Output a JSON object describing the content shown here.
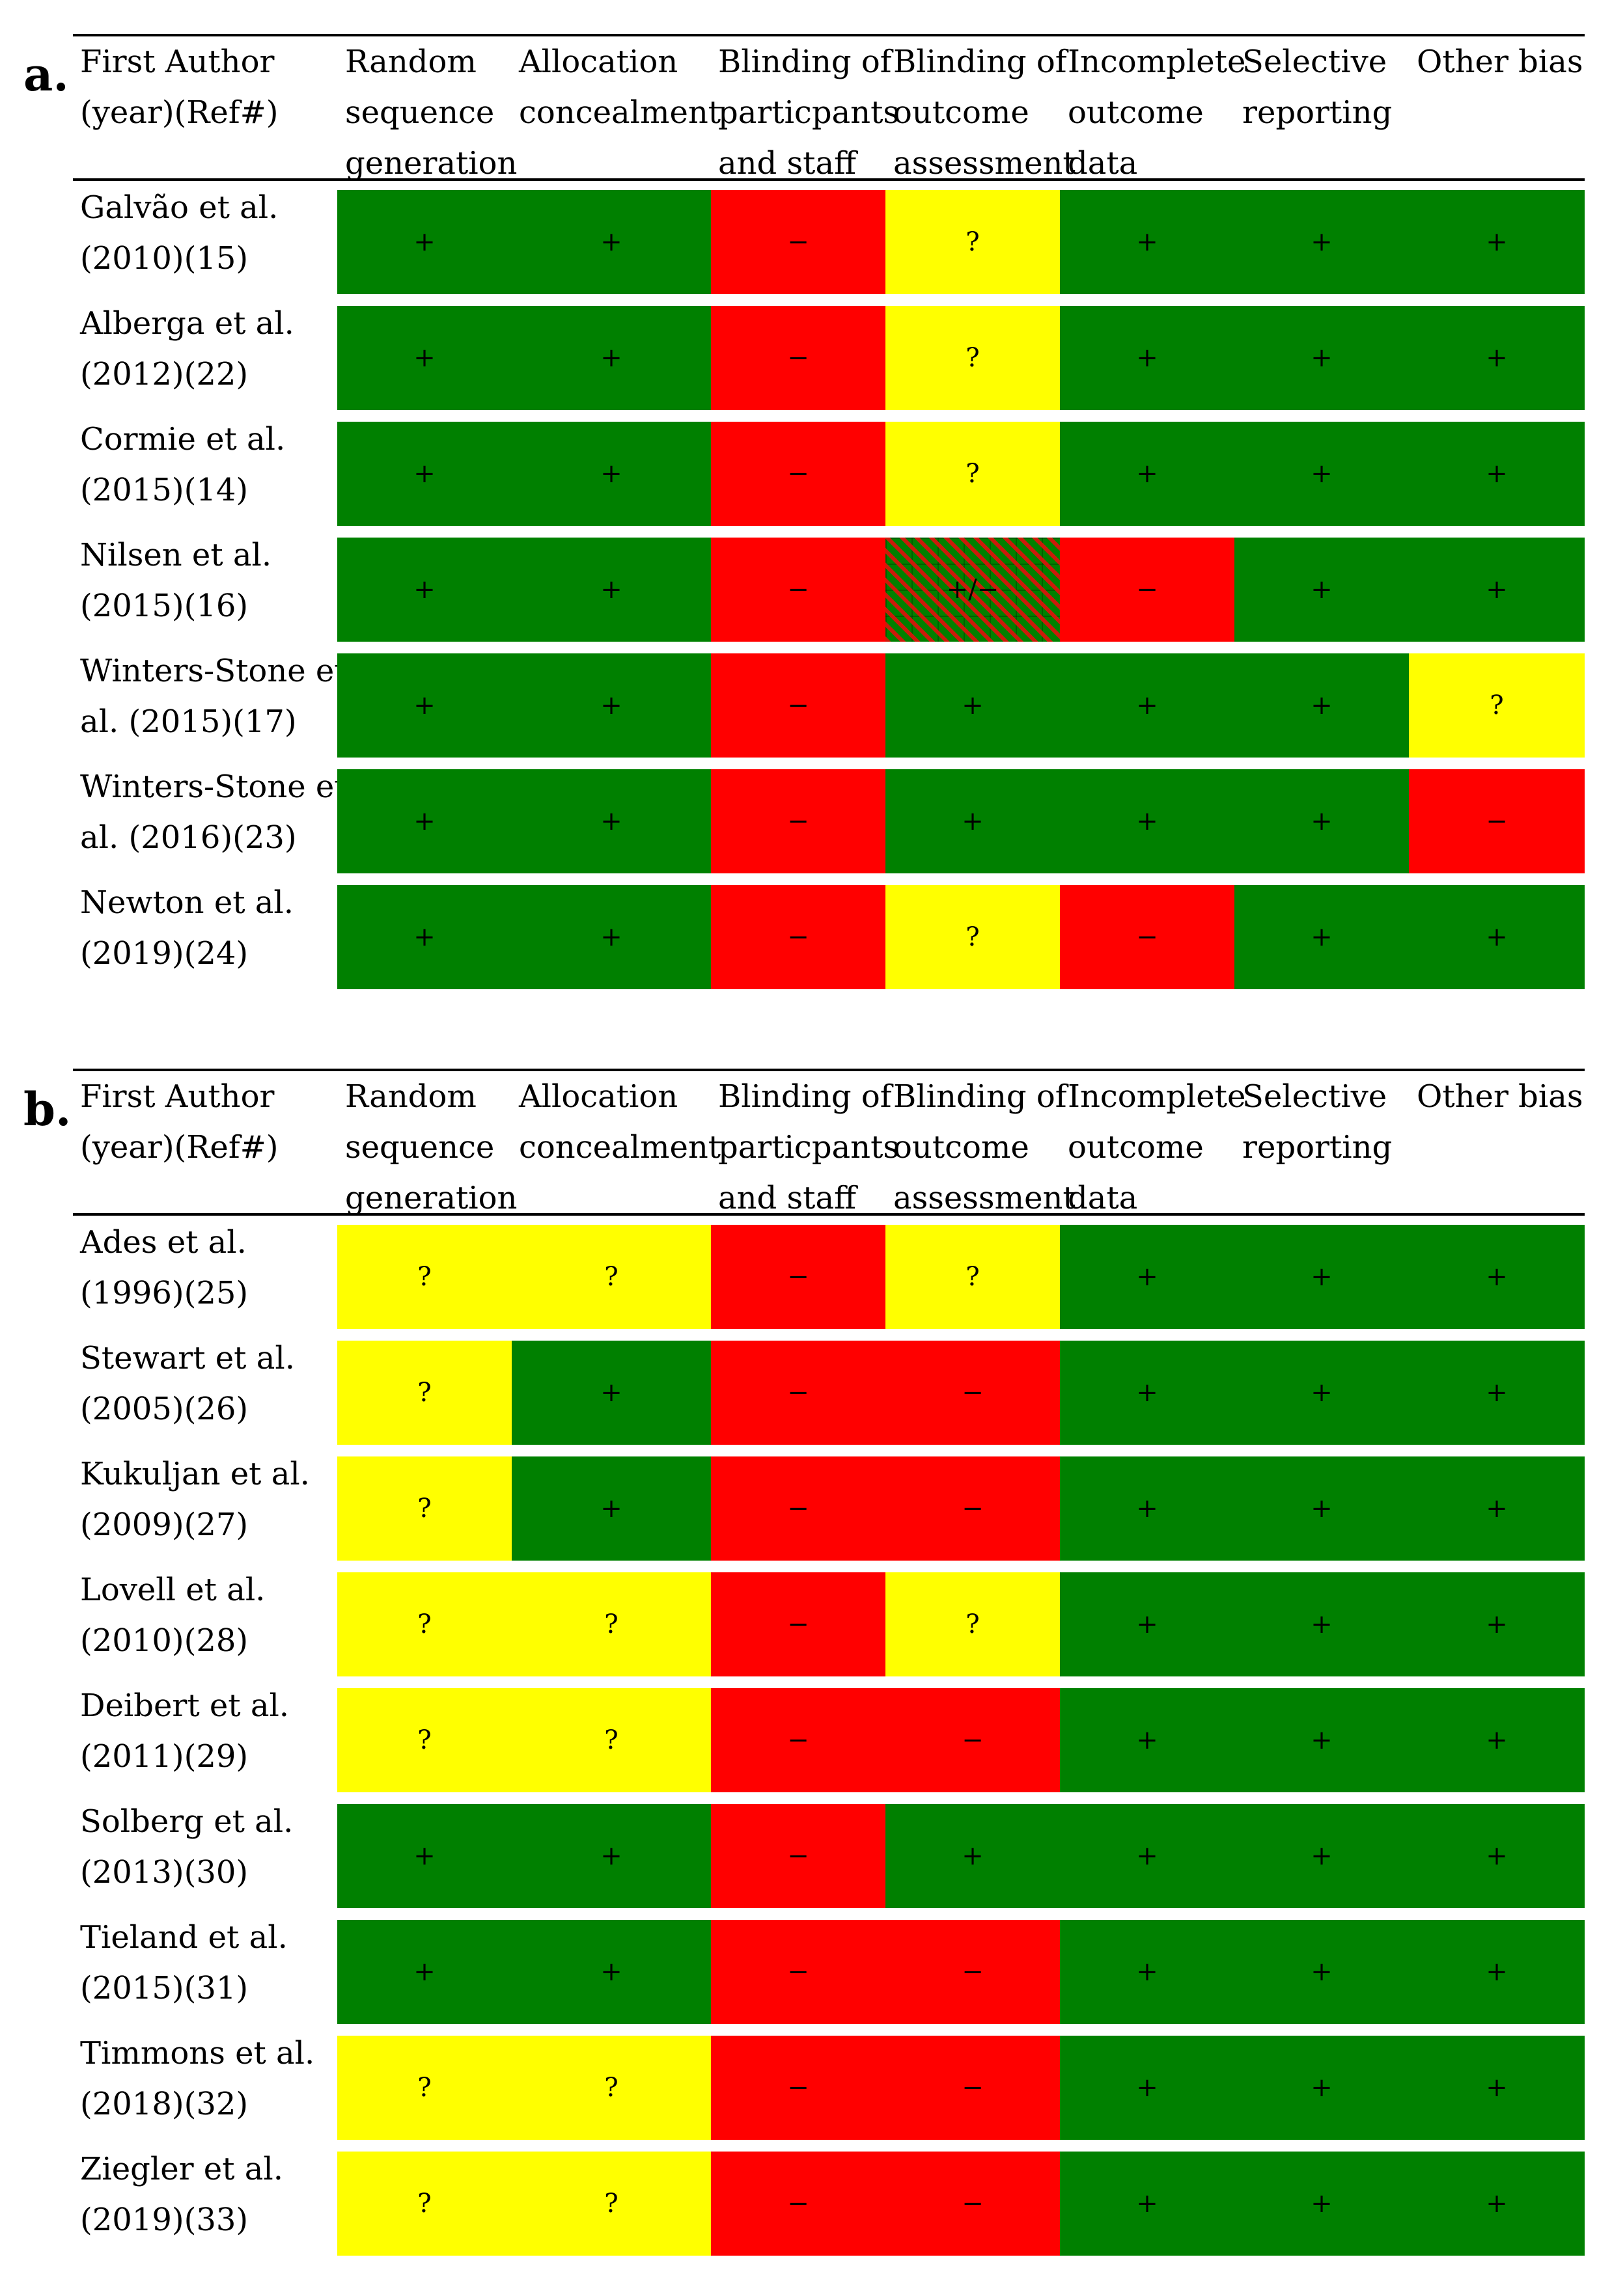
{
  "columns": [
    {
      "lines": [
        "First Author",
        "(year)(Ref#)"
      ]
    },
    {
      "lines": [
        "Random",
        "sequence",
        "generation"
      ]
    },
    {
      "lines": [
        "Allocation",
        "concealment"
      ]
    },
    {
      "lines": [
        "Blinding of",
        "particpants",
        "and staff"
      ]
    },
    {
      "lines": [
        "Blinding of",
        "outcome",
        "assessment"
      ]
    },
    {
      "lines": [
        "Incomplete",
        "outcome",
        "data"
      ]
    },
    {
      "lines": [
        "Selective",
        "reporting"
      ]
    },
    {
      "lines": [
        "Other bias"
      ]
    }
  ],
  "legend_colors": {
    "+": "#008000",
    "-": "#ff0000",
    "?": "#ffff00",
    "+/-": "hatched"
  },
  "panels": [
    {
      "label": "a.",
      "rows": [
        {
          "author": [
            "Galvão et al.",
            "(2010)(15)"
          ],
          "ratings": [
            "+",
            "+",
            "−",
            "?",
            "+",
            "+",
            "+"
          ],
          "colors": [
            "g",
            "g",
            "r",
            "y",
            "g",
            "g",
            "g"
          ]
        },
        {
          "author": [
            "Alberga et al.",
            "(2012)(22)"
          ],
          "ratings": [
            "+",
            "+",
            "−",
            "?",
            "+",
            "+",
            "+"
          ],
          "colors": [
            "g",
            "g",
            "r",
            "y",
            "g",
            "g",
            "g"
          ]
        },
        {
          "author": [
            "Cormie et al.",
            "(2015)(14)"
          ],
          "ratings": [
            "+",
            "+",
            "−",
            "?",
            "+",
            "+",
            "+"
          ],
          "colors": [
            "g",
            "g",
            "r",
            "y",
            "g",
            "g",
            "g"
          ]
        },
        {
          "author": [
            "Nilsen et al.",
            "(2015)(16)"
          ],
          "ratings": [
            "+",
            "+",
            "−",
            "+/−",
            "−",
            "+",
            "+"
          ],
          "colors": [
            "g",
            "g",
            "r",
            "h",
            "r",
            "g",
            "g"
          ]
        },
        {
          "author": [
            "Winters-Stone et",
            "al. (2015)(17)"
          ],
          "ratings": [
            "+",
            "+",
            "−",
            "+",
            "+",
            "+",
            "?"
          ],
          "colors": [
            "g",
            "g",
            "r",
            "g",
            "g",
            "g",
            "y"
          ]
        },
        {
          "author": [
            "Winters-Stone et",
            "al. (2016)(23)"
          ],
          "ratings": [
            "+",
            "+",
            "−",
            "+",
            "+",
            "+",
            "−"
          ],
          "colors": [
            "g",
            "g",
            "r",
            "g",
            "g",
            "g",
            "r"
          ]
        },
        {
          "author": [
            "Newton et al.",
            "(2019)(24)"
          ],
          "ratings": [
            "+",
            "+",
            "−",
            "?",
            "−",
            "+",
            "+"
          ],
          "colors": [
            "g",
            "g",
            "r",
            "y",
            "r",
            "g",
            "g"
          ]
        }
      ]
    },
    {
      "label": "b.",
      "rows": [
        {
          "author": [
            "Ades et al.",
            "(1996)(25)"
          ],
          "ratings": [
            "?",
            "?",
            "−",
            "?",
            "+",
            "+",
            "+"
          ],
          "colors": [
            "y",
            "y",
            "r",
            "y",
            "g",
            "g",
            "g"
          ]
        },
        {
          "author": [
            "Stewart et al.",
            "(2005)(26)"
          ],
          "ratings": [
            "?",
            "+",
            "−",
            "−",
            "+",
            "+",
            "+"
          ],
          "colors": [
            "y",
            "g",
            "r",
            "r",
            "g",
            "g",
            "g"
          ]
        },
        {
          "author": [
            "Kukuljan et al.",
            "(2009)(27)"
          ],
          "ratings": [
            "?",
            "+",
            "−",
            "−",
            "+",
            "+",
            "+"
          ],
          "colors": [
            "y",
            "g",
            "r",
            "r",
            "g",
            "g",
            "g"
          ]
        },
        {
          "author": [
            "Lovell et al.",
            "(2010)(28)"
          ],
          "ratings": [
            "?",
            "?",
            "−",
            "?",
            "+",
            "+",
            "+"
          ],
          "colors": [
            "y",
            "y",
            "r",
            "y",
            "g",
            "g",
            "g"
          ]
        },
        {
          "author": [
            "Deibert et al.",
            "(2011)(29)"
          ],
          "ratings": [
            "?",
            "?",
            "−",
            "−",
            "+",
            "+",
            "+"
          ],
          "colors": [
            "y",
            "y",
            "r",
            "r",
            "g",
            "g",
            "g"
          ]
        },
        {
          "author": [
            "Solberg et al.",
            "(2013)(30)"
          ],
          "ratings": [
            "+",
            "+",
            "−",
            "+",
            "+",
            "+",
            "+"
          ],
          "colors": [
            "g",
            "g",
            "r",
            "g",
            "g",
            "g",
            "g"
          ]
        },
        {
          "author": [
            "Tieland et al.",
            "(2015)(31)"
          ],
          "ratings": [
            "+",
            "+",
            "−",
            "−",
            "+",
            "+",
            "+"
          ],
          "colors": [
            "g",
            "g",
            "r",
            "r",
            "g",
            "g",
            "g"
          ]
        },
        {
          "author": [
            "Timmons et al.",
            "(2018)(32)"
          ],
          "ratings": [
            "?",
            "?",
            "−",
            "−",
            "+",
            "+",
            "+"
          ],
          "colors": [
            "y",
            "y",
            "r",
            "r",
            "g",
            "g",
            "g"
          ]
        },
        {
          "author": [
            "Ziegler et al.",
            "(2019)(33)"
          ],
          "ratings": [
            "?",
            "?",
            "−",
            "−",
            "+",
            "+",
            "+"
          ],
          "colors": [
            "y",
            "y",
            "r",
            "r",
            "g",
            "g",
            "g"
          ]
        }
      ]
    }
  ]
}
